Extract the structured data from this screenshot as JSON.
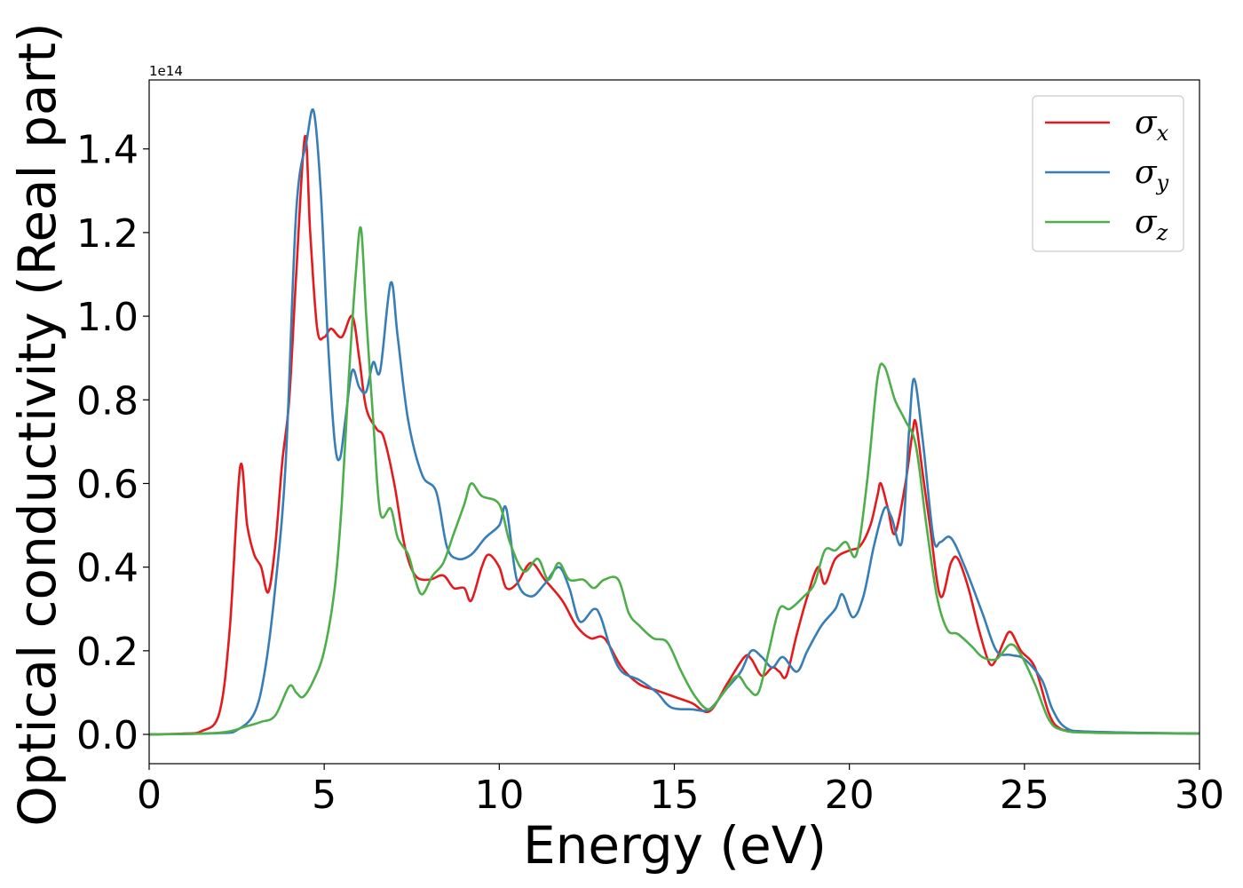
{
  "chart_data": {
    "type": "line",
    "xlabel": "Energy (eV)",
    "ylabel": "Optical conductivity (Real part)",
    "y_offset_label": "1e14",
    "xlim": [
      0,
      30
    ],
    "ylim": [
      -0.07,
      1.565
    ],
    "x_ticks": [
      0,
      5,
      10,
      15,
      20,
      25,
      30
    ],
    "x_tick_labels": [
      "0",
      "5",
      "10",
      "15",
      "20",
      "25",
      "30"
    ],
    "y_ticks": [
      0.0,
      0.2,
      0.4,
      0.6,
      0.8,
      1.0,
      1.2,
      1.4
    ],
    "y_tick_labels": [
      "0.0",
      "0.2",
      "0.4",
      "0.6",
      "0.8",
      "1.0",
      "1.2",
      "1.4"
    ],
    "grid": false,
    "legend_position": "top-right",
    "series": [
      {
        "name": "σ",
        "subscript": "x",
        "color": "#e41a1c",
        "points": [
          [
            0,
            0
          ],
          [
            1,
            0.002
          ],
          [
            1.5,
            0.008
          ],
          [
            2,
            0.05
          ],
          [
            2.3,
            0.25
          ],
          [
            2.6,
            0.64
          ],
          [
            2.8,
            0.5
          ],
          [
            3,
            0.43
          ],
          [
            3.2,
            0.4
          ],
          [
            3.4,
            0.34
          ],
          [
            3.6,
            0.45
          ],
          [
            3.8,
            0.65
          ],
          [
            4,
            0.8
          ],
          [
            4.2,
            1.1
          ],
          [
            4.45,
            1.43
          ],
          [
            4.6,
            1.2
          ],
          [
            4.8,
            0.97
          ],
          [
            5,
            0.95
          ],
          [
            5.2,
            0.97
          ],
          [
            5.5,
            0.95
          ],
          [
            5.8,
            1.0
          ],
          [
            6,
            0.9
          ],
          [
            6.2,
            0.78
          ],
          [
            6.5,
            0.73
          ],
          [
            6.7,
            0.71
          ],
          [
            7,
            0.6
          ],
          [
            7.3,
            0.45
          ],
          [
            7.6,
            0.38
          ],
          [
            8,
            0.37
          ],
          [
            8.4,
            0.38
          ],
          [
            8.7,
            0.35
          ],
          [
            9,
            0.35
          ],
          [
            9.2,
            0.32
          ],
          [
            9.5,
            0.4
          ],
          [
            9.7,
            0.43
          ],
          [
            10,
            0.4
          ],
          [
            10.2,
            0.35
          ],
          [
            10.5,
            0.36
          ],
          [
            10.9,
            0.41
          ],
          [
            11.3,
            0.37
          ],
          [
            11.8,
            0.32
          ],
          [
            12.2,
            0.26
          ],
          [
            12.6,
            0.23
          ],
          [
            13,
            0.23
          ],
          [
            13.5,
            0.16
          ],
          [
            14,
            0.12
          ],
          [
            14.5,
            0.105
          ],
          [
            15,
            0.09
          ],
          [
            15.5,
            0.075
          ],
          [
            16,
            0.055
          ],
          [
            16.5,
            0.12
          ],
          [
            17,
            0.185
          ],
          [
            17.2,
            0.18
          ],
          [
            17.5,
            0.14
          ],
          [
            17.8,
            0.16
          ],
          [
            18,
            0.15
          ],
          [
            18.2,
            0.14
          ],
          [
            18.5,
            0.24
          ],
          [
            18.8,
            0.33
          ],
          [
            19.1,
            0.4
          ],
          [
            19.3,
            0.36
          ],
          [
            19.6,
            0.42
          ],
          [
            20,
            0.44
          ],
          [
            20.3,
            0.45
          ],
          [
            20.6,
            0.5
          ],
          [
            20.8,
            0.57
          ],
          [
            20.9,
            0.6
          ],
          [
            21.1,
            0.54
          ],
          [
            21.3,
            0.48
          ],
          [
            21.6,
            0.6
          ],
          [
            21.8,
            0.72
          ],
          [
            21.9,
            0.745
          ],
          [
            22.1,
            0.62
          ],
          [
            22.3,
            0.5
          ],
          [
            22.6,
            0.33
          ],
          [
            22.9,
            0.41
          ],
          [
            23.1,
            0.42
          ],
          [
            23.4,
            0.35
          ],
          [
            23.7,
            0.25
          ],
          [
            24,
            0.17
          ],
          [
            24.2,
            0.18
          ],
          [
            24.4,
            0.22
          ],
          [
            24.6,
            0.245
          ],
          [
            24.9,
            0.2
          ],
          [
            25.3,
            0.16
          ],
          [
            25.7,
            0.05
          ],
          [
            26,
            0.015
          ],
          [
            26.5,
            0.008
          ],
          [
            28,
            0.004
          ],
          [
            30,
            0.002
          ]
        ]
      },
      {
        "name": "σ",
        "subscript": "y",
        "color": "#377eb8",
        "points": [
          [
            0,
            0
          ],
          [
            2,
            0.003
          ],
          [
            2.5,
            0.01
          ],
          [
            3,
            0.05
          ],
          [
            3.3,
            0.15
          ],
          [
            3.6,
            0.35
          ],
          [
            3.9,
            0.65
          ],
          [
            4.2,
            1.25
          ],
          [
            4.5,
            1.42
          ],
          [
            4.7,
            1.49
          ],
          [
            4.9,
            1.3
          ],
          [
            5.1,
            0.95
          ],
          [
            5.3,
            0.7
          ],
          [
            5.45,
            0.66
          ],
          [
            5.6,
            0.75
          ],
          [
            5.8,
            0.87
          ],
          [
            6,
            0.83
          ],
          [
            6.2,
            0.82
          ],
          [
            6.4,
            0.89
          ],
          [
            6.6,
            0.87
          ],
          [
            6.9,
            1.08
          ],
          [
            7.1,
            0.95
          ],
          [
            7.4,
            0.75
          ],
          [
            7.8,
            0.62
          ],
          [
            8.2,
            0.58
          ],
          [
            8.5,
            0.45
          ],
          [
            8.8,
            0.42
          ],
          [
            9.2,
            0.43
          ],
          [
            9.6,
            0.47
          ],
          [
            10,
            0.5
          ],
          [
            10.2,
            0.54
          ],
          [
            10.5,
            0.37
          ],
          [
            10.9,
            0.33
          ],
          [
            11.3,
            0.36
          ],
          [
            11.7,
            0.4
          ],
          [
            12,
            0.35
          ],
          [
            12.3,
            0.27
          ],
          [
            12.7,
            0.3
          ],
          [
            12.9,
            0.28
          ],
          [
            13.2,
            0.2
          ],
          [
            13.5,
            0.15
          ],
          [
            14,
            0.13
          ],
          [
            14.5,
            0.1
          ],
          [
            14.9,
            0.065
          ],
          [
            15.5,
            0.06
          ],
          [
            16,
            0.06
          ],
          [
            16.5,
            0.11
          ],
          [
            16.9,
            0.15
          ],
          [
            17.2,
            0.2
          ],
          [
            17.5,
            0.185
          ],
          [
            17.8,
            0.16
          ],
          [
            18.1,
            0.185
          ],
          [
            18.5,
            0.15
          ],
          [
            18.8,
            0.2
          ],
          [
            19.2,
            0.26
          ],
          [
            19.6,
            0.3
          ],
          [
            19.8,
            0.335
          ],
          [
            20.1,
            0.28
          ],
          [
            20.4,
            0.33
          ],
          [
            20.7,
            0.45
          ],
          [
            21,
            0.54
          ],
          [
            21.2,
            0.52
          ],
          [
            21.5,
            0.46
          ],
          [
            21.7,
            0.72
          ],
          [
            21.85,
            0.85
          ],
          [
            22.1,
            0.7
          ],
          [
            22.4,
            0.47
          ],
          [
            22.6,
            0.46
          ],
          [
            22.9,
            0.47
          ],
          [
            23.3,
            0.4
          ],
          [
            23.8,
            0.29
          ],
          [
            24.2,
            0.2
          ],
          [
            24.6,
            0.19
          ],
          [
            25,
            0.18
          ],
          [
            25.5,
            0.13
          ],
          [
            25.8,
            0.06
          ],
          [
            26.2,
            0.015
          ],
          [
            27,
            0.006
          ],
          [
            30,
            0.002
          ]
        ]
      },
      {
        "name": "σ",
        "subscript": "z",
        "color": "#4daf4a",
        "points": [
          [
            0,
            0
          ],
          [
            2,
            0.004
          ],
          [
            2.8,
            0.02
          ],
          [
            3.2,
            0.03
          ],
          [
            3.6,
            0.045
          ],
          [
            4,
            0.115
          ],
          [
            4.2,
            0.1
          ],
          [
            4.4,
            0.09
          ],
          [
            4.7,
            0.13
          ],
          [
            5,
            0.2
          ],
          [
            5.3,
            0.35
          ],
          [
            5.5,
            0.55
          ],
          [
            5.7,
            0.85
          ],
          [
            5.9,
            1.1
          ],
          [
            6.05,
            1.21
          ],
          [
            6.2,
            1.0
          ],
          [
            6.4,
            0.75
          ],
          [
            6.6,
            0.53
          ],
          [
            6.9,
            0.54
          ],
          [
            7.1,
            0.47
          ],
          [
            7.4,
            0.43
          ],
          [
            7.6,
            0.37
          ],
          [
            7.8,
            0.335
          ],
          [
            8.1,
            0.38
          ],
          [
            8.4,
            0.41
          ],
          [
            8.7,
            0.48
          ],
          [
            9,
            0.55
          ],
          [
            9.2,
            0.6
          ],
          [
            9.5,
            0.57
          ],
          [
            10,
            0.55
          ],
          [
            10.3,
            0.46
          ],
          [
            10.7,
            0.39
          ],
          [
            11.1,
            0.42
          ],
          [
            11.4,
            0.37
          ],
          [
            11.7,
            0.41
          ],
          [
            12,
            0.37
          ],
          [
            12.4,
            0.37
          ],
          [
            12.7,
            0.35
          ],
          [
            13,
            0.37
          ],
          [
            13.4,
            0.37
          ],
          [
            13.7,
            0.29
          ],
          [
            14,
            0.26
          ],
          [
            14.4,
            0.23
          ],
          [
            14.8,
            0.22
          ],
          [
            15.2,
            0.15
          ],
          [
            15.6,
            0.09
          ],
          [
            16,
            0.06
          ],
          [
            16.4,
            0.1
          ],
          [
            16.8,
            0.14
          ],
          [
            17.1,
            0.11
          ],
          [
            17.4,
            0.1
          ],
          [
            17.7,
            0.2
          ],
          [
            18,
            0.3
          ],
          [
            18.3,
            0.3
          ],
          [
            18.7,
            0.33
          ],
          [
            19,
            0.36
          ],
          [
            19.3,
            0.44
          ],
          [
            19.6,
            0.44
          ],
          [
            19.9,
            0.46
          ],
          [
            20.2,
            0.43
          ],
          [
            20.5,
            0.6
          ],
          [
            20.8,
            0.85
          ],
          [
            21,
            0.88
          ],
          [
            21.3,
            0.8
          ],
          [
            21.6,
            0.75
          ],
          [
            21.9,
            0.69
          ],
          [
            22.2,
            0.5
          ],
          [
            22.5,
            0.33
          ],
          [
            22.8,
            0.25
          ],
          [
            23.1,
            0.24
          ],
          [
            23.5,
            0.21
          ],
          [
            23.8,
            0.185
          ],
          [
            24.2,
            0.18
          ],
          [
            24.6,
            0.215
          ],
          [
            24.9,
            0.19
          ],
          [
            25.3,
            0.12
          ],
          [
            25.7,
            0.035
          ],
          [
            26.1,
            0.01
          ],
          [
            27,
            0.004
          ],
          [
            30,
            0.002
          ]
        ]
      }
    ]
  }
}
